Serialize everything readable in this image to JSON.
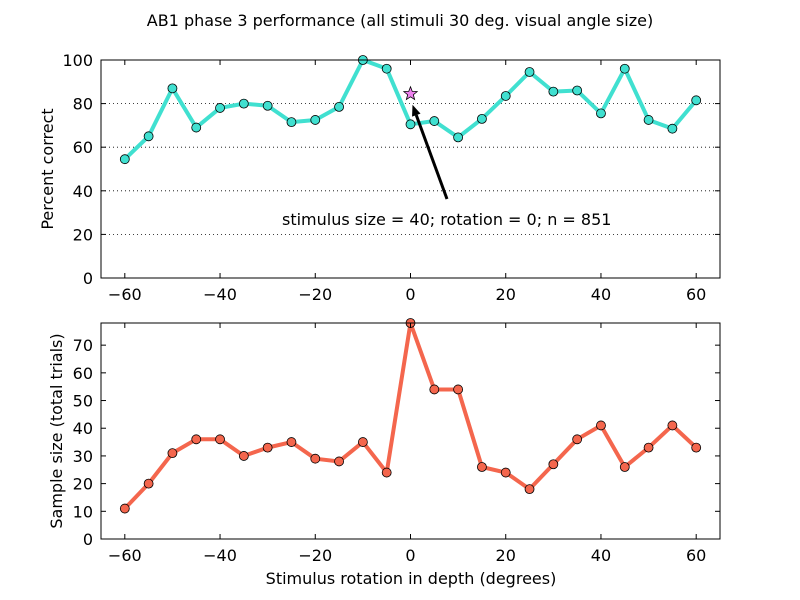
{
  "figure": {
    "title": "AB1 phase 3 performance (all stimuli 30 deg. visual angle size)"
  },
  "chart_data": [
    {
      "type": "line",
      "panel": "top",
      "x": [
        -60,
        -55,
        -50,
        -45,
        -40,
        -35,
        -30,
        -25,
        -20,
        -15,
        -10,
        -5,
        0,
        5,
        10,
        15,
        20,
        25,
        30,
        35,
        40,
        45,
        50,
        55,
        60
      ],
      "series": [
        {
          "values": [
            54.5,
            65,
            87,
            69,
            78,
            80,
            79,
            71.5,
            72.5,
            78.5,
            100,
            96,
            70.5,
            72,
            64.5,
            73,
            83.5,
            94.5,
            85.5,
            86,
            75.5,
            96,
            72.5,
            68.5,
            81.5
          ],
          "color": "#40e0d0",
          "marker_color": "#40e0d0"
        }
      ],
      "reference_point": {
        "x": 0,
        "y": 84.5,
        "marker": "star",
        "color": "#ee82ee"
      },
      "annotation": {
        "text": "stimulus size = 40; rotation = 0; n = 851",
        "arrow_to": {
          "x": 0,
          "y": 84.5
        }
      },
      "xlabel": "",
      "ylabel": "Percent correct",
      "xlim": [
        -65,
        65
      ],
      "ylim": [
        0,
        100
      ],
      "xticks": [
        -60,
        -40,
        -20,
        0,
        20,
        40,
        60
      ],
      "yticks": [
        0,
        20,
        40,
        60,
        80,
        100
      ],
      "xtick_labels": [
        "−60",
        "−40",
        "−20",
        "0",
        "20",
        "40",
        "60"
      ],
      "ytick_labels": [
        "0",
        "20",
        "40",
        "60",
        "80",
        "100"
      ],
      "grid": "horizontal dotted"
    },
    {
      "type": "line",
      "panel": "bottom",
      "x": [
        -60,
        -55,
        -50,
        -45,
        -40,
        -35,
        -30,
        -25,
        -20,
        -15,
        -10,
        -5,
        0,
        5,
        10,
        15,
        20,
        25,
        30,
        35,
        40,
        45,
        50,
        55,
        60
      ],
      "series": [
        {
          "values": [
            11,
            20,
            31,
            36,
            36,
            30,
            33,
            35,
            29,
            28,
            35,
            24,
            78,
            54,
            54,
            26,
            24,
            18,
            27,
            36,
            41,
            26,
            33,
            41,
            33
          ],
          "color": "#f4664d",
          "marker_color": "#f4664d"
        }
      ],
      "xlabel": "Stimulus rotation in depth (degrees)",
      "ylabel": "Sample size (total trials)",
      "xlim": [
        -65,
        65
      ],
      "ylim": [
        0,
        78
      ],
      "xticks": [
        -60,
        -40,
        -20,
        0,
        20,
        40,
        60
      ],
      "yticks": [
        0,
        10,
        20,
        30,
        40,
        50,
        60,
        70
      ],
      "xtick_labels": [
        "−60",
        "−40",
        "−20",
        "0",
        "20",
        "40",
        "60"
      ],
      "ytick_labels": [
        "0",
        "10",
        "20",
        "30",
        "40",
        "50",
        "60",
        "70"
      ],
      "grid": "none"
    }
  ]
}
